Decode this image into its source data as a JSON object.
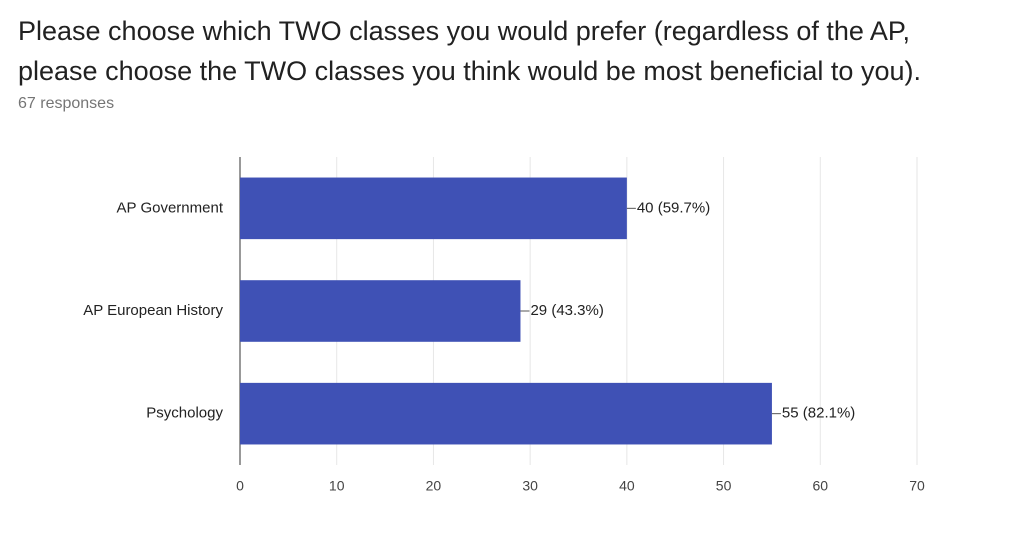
{
  "chart_data": {
    "type": "bar",
    "orientation": "horizontal",
    "title": [
      "Please choose which TWO classes you would prefer (regardless of the AP,",
      "please choose the TWO classes you think would be most beneficial to you)."
    ],
    "subtitle": "67 responses",
    "categories": [
      "AP Government",
      "AP European History",
      "Psychology"
    ],
    "values": [
      40,
      29,
      55
    ],
    "value_labels": [
      "40 (59.7%)",
      "29 (43.3%)",
      "55 (82.1%)"
    ],
    "color": "#3f51b5",
    "xlim": [
      0,
      70
    ],
    "xticks": [
      0,
      10,
      20,
      30,
      40,
      50,
      60,
      70
    ],
    "grid": true
  }
}
